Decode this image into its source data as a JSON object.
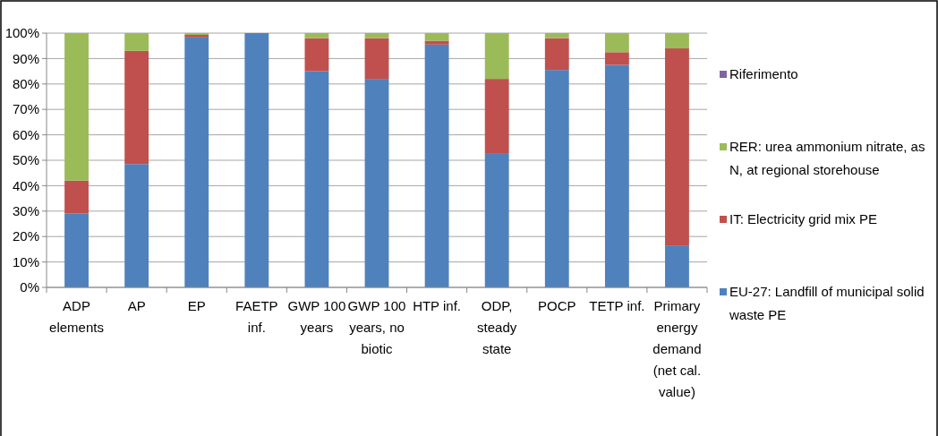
{
  "chart_data": {
    "type": "bar",
    "stacked": true,
    "categories": [
      "ADP elements",
      "AP",
      "EP",
      "FAETP inf.",
      "GWP 100 years",
      "GWP 100 years, no biotic",
      "HTP inf.",
      "ODP, steady state",
      "POCP",
      "TETP inf.",
      "Primary energy demand (net cal. value)"
    ],
    "series": [
      {
        "name": "EU-27: Landfill of municipal solid waste PE",
        "color": "#4f81bd",
        "values": [
          29,
          48.5,
          98.3,
          100,
          85,
          82,
          95.5,
          52.5,
          85.5,
          87.5,
          16.5
        ]
      },
      {
        "name": "IT: Electricity grid mix PE",
        "color": "#c0504d",
        "values": [
          13,
          44.5,
          1,
          0,
          13,
          16,
          1.5,
          29.5,
          12.5,
          5,
          77.5
        ]
      },
      {
        "name": "RER: urea ammonium nitrate, as N, at regional storehouse",
        "color": "#9bbb59",
        "values": [
          58,
          7,
          0.7,
          0,
          2,
          2,
          3,
          18,
          2,
          7.5,
          6
        ]
      },
      {
        "name": "Riferimento",
        "color": "#8064a2",
        "values": [
          0,
          0,
          0,
          0,
          0,
          0,
          0,
          0,
          0,
          0,
          0
        ]
      }
    ],
    "ylim": [
      0,
      100
    ],
    "yticks": [
      {
        "value": 0,
        "label": "0%"
      },
      {
        "value": 10,
        "label": "10%"
      },
      {
        "value": 20,
        "label": "20%"
      },
      {
        "value": 30,
        "label": "30%"
      },
      {
        "value": 40,
        "label": "40%"
      },
      {
        "value": 50,
        "label": "50%"
      },
      {
        "value": 60,
        "label": "60%"
      },
      {
        "value": 70,
        "label": "70%"
      },
      {
        "value": 80,
        "label": "80%"
      },
      {
        "value": 90,
        "label": "90%"
      },
      {
        "value": 100,
        "label": "100%"
      }
    ],
    "grid": "y",
    "legend": "right"
  }
}
